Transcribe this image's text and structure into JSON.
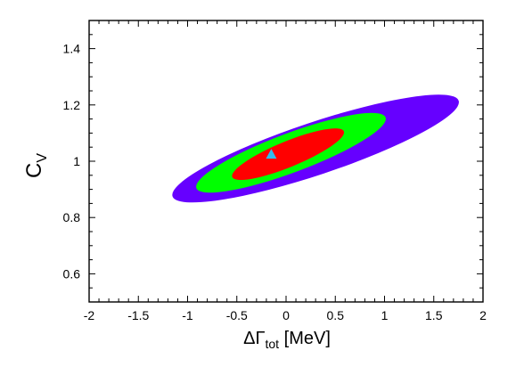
{
  "chart_data": {
    "type": "contour",
    "title": "",
    "xlabel": {
      "main": "ΔΓ",
      "sub": "tot",
      "unit": " [MeV]"
    },
    "ylabel": {
      "main": "C",
      "sub": "V"
    },
    "xlim": [
      -2,
      2
    ],
    "ylim": [
      0.5,
      1.5
    ],
    "xticks": [
      -2,
      -1.5,
      -1,
      -0.5,
      0,
      0.5,
      1,
      1.5,
      2
    ],
    "xtick_labels": [
      "-2",
      "-1.5",
      "-1",
      "-0.5",
      "0",
      "0.5",
      "1",
      "1.5",
      "2"
    ],
    "yticks": [
      0.6,
      0.8,
      1.0,
      1.2,
      1.4
    ],
    "ytick_labels": [
      "0.6",
      "0.8",
      "1",
      "1.2",
      "1.4"
    ],
    "grid": false,
    "legend": "none",
    "center": {
      "x": -0.15,
      "y": 1.025
    },
    "regions": [
      {
        "color": "#6600ff",
        "center": [
          0.3,
          1.045
        ],
        "x_range": [
          -1.2,
          1.75
        ],
        "y_range": [
          0.87,
          1.215
        ]
      },
      {
        "color": "#00ff00",
        "center": [
          0.05,
          1.03
        ],
        "x_range": [
          -0.9,
          1.05
        ],
        "y_range": [
          0.905,
          1.16
        ]
      },
      {
        "color": "#ff0000",
        "center": [
          0.02,
          1.025
        ],
        "x_range": [
          -0.6,
          0.55
        ],
        "y_range": [
          0.94,
          1.105
        ]
      }
    ],
    "best_fit": {
      "x": -0.15,
      "y": 1.025,
      "marker": "triangle",
      "color": "#33bbee"
    }
  }
}
